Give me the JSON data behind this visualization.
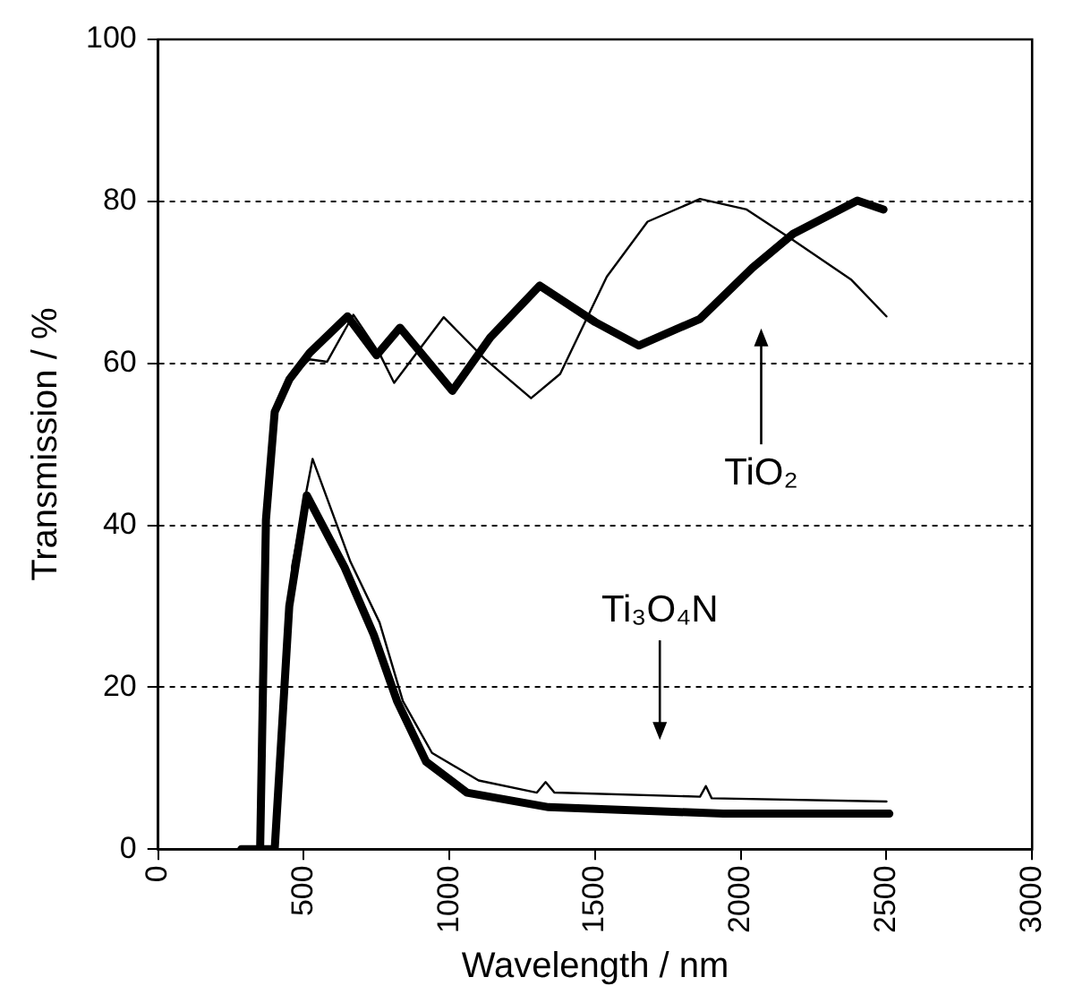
{
  "chart_data": {
    "type": "line",
    "xlabel": "Wavelength / nm",
    "ylabel": "Transmission / %",
    "xlim": [
      0,
      3000
    ],
    "xticks": [
      0,
      500,
      1000,
      1500,
      2000,
      2500,
      3000
    ],
    "ylim": [
      0,
      100
    ],
    "yticks": [
      0,
      20,
      40,
      60,
      80,
      100
    ],
    "grid": "y",
    "legend": false,
    "marker": "none",
    "line_style": "solid",
    "series": [
      {
        "color": "#000000",
        "x": [
          285,
          350,
          370,
          400,
          450,
          520,
          650,
          750,
          830,
          1010,
          1140,
          1310,
          1500,
          1650,
          1860,
          2040,
          2180,
          2400,
          2490
        ],
        "values": [
          0,
          0,
          40.7,
          54,
          58,
          61.3,
          65.8,
          61,
          64.4,
          56.6,
          63.2,
          69.6,
          65.1,
          62.2,
          65.5,
          71.8,
          76,
          80.1,
          79
        ]
      },
      {
        "color": "#000000",
        "x": [
          285,
          350,
          370,
          400,
          450,
          520,
          580,
          670,
          760,
          810,
          980,
          1120,
          1280,
          1380,
          1540,
          1680,
          1860,
          2020,
          2180,
          2380,
          2500
        ],
        "values": [
          0,
          0,
          40.7,
          54,
          58,
          60.5,
          60.2,
          66,
          61.2,
          57.6,
          65.7,
          60.6,
          55.7,
          58.7,
          70.7,
          77.5,
          80.3,
          79,
          75.2,
          70.3,
          65.8
        ]
      },
      {
        "color": "#000000",
        "x": [
          350,
          400,
          450,
          510,
          640,
          740,
          820,
          920,
          1060,
          1340,
          1940,
          2510
        ],
        "values": [
          0,
          0,
          30,
          43.7,
          34.8,
          26.5,
          18.3,
          10.8,
          7,
          5.2,
          4.4,
          4.4
        ]
      },
      {
        "color": "#000000",
        "x": [
          350,
          400,
          460,
          530,
          660,
          760,
          840,
          940,
          1100,
          1300,
          1330,
          1360,
          1860,
          1880,
          1900,
          2500
        ],
        "values": [
          0,
          0,
          35,
          48.2,
          35.5,
          28,
          18.3,
          11.9,
          8.5,
          7,
          8.3,
          7,
          6.5,
          7.8,
          6.3,
          5.9
        ]
      }
    ],
    "annotations": [
      "TiO₂",
      "Ti₃O₄N"
    ]
  }
}
